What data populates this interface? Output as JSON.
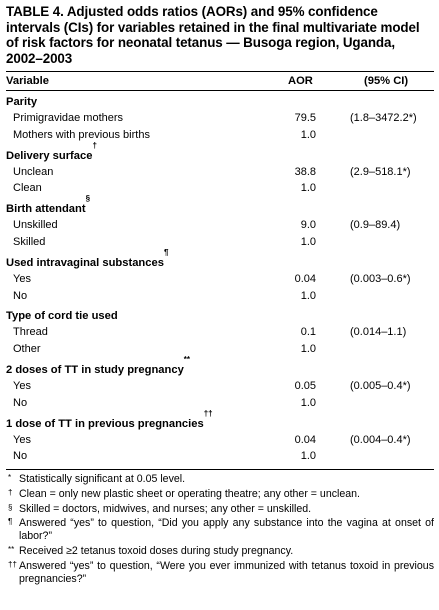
{
  "title": "TABLE 4. Adjusted odds ratios (AORs) and 95% confidence intervals (CIs) for variables retained in the final multivariate model of risk factors for neonatal tetanus — Busoga region, Uganda, 2002–2003",
  "header": {
    "variable": "Variable",
    "aor": "AOR",
    "ci": "(95% CI)"
  },
  "groups": [
    {
      "label": "Parity",
      "mark": "",
      "rows": [
        {
          "variable": "Primigravidae mothers",
          "aor": "79.5",
          "ci": "(1.8–3472.2*)"
        },
        {
          "variable": "Mothers with previous births",
          "aor": "1.0",
          "ci": ""
        }
      ]
    },
    {
      "label": "Delivery surface",
      "mark": "†",
      "rows": [
        {
          "variable": "Unclean",
          "aor": "38.8",
          "ci": "(2.9–518.1*)"
        },
        {
          "variable": "Clean",
          "aor": "1.0",
          "ci": ""
        }
      ]
    },
    {
      "label": "Birth attendant",
      "mark": "§",
      "rows": [
        {
          "variable": "Unskilled",
          "aor": "9.0",
          "ci": "(0.9–89.4)"
        },
        {
          "variable": "Skilled",
          "aor": "1.0",
          "ci": ""
        }
      ]
    },
    {
      "label": "Used intravaginal substances",
      "mark": "¶",
      "rows": [
        {
          "variable": "Yes",
          "aor": "0.04",
          "ci": "(0.003–0.6*)"
        },
        {
          "variable": "No",
          "aor": "1.0",
          "ci": ""
        }
      ]
    },
    {
      "label": "Type of cord tie used",
      "mark": "",
      "rows": [
        {
          "variable": "Thread",
          "aor": "0.1",
          "ci": "(0.014–1.1)"
        },
        {
          "variable": "Other",
          "aor": "1.0",
          "ci": ""
        }
      ]
    },
    {
      "label": "2 doses of TT in study pregnancy",
      "mark": "**",
      "rows": [
        {
          "variable": "Yes",
          "aor": "0.05",
          "ci": "(0.005–0.4*)"
        },
        {
          "variable": "No",
          "aor": "1.0",
          "ci": ""
        }
      ]
    },
    {
      "label": "1 dose of TT in previous pregnancies",
      "mark": "††",
      "rows": [
        {
          "variable": "Yes",
          "aor": "0.04",
          "ci": "(0.004–0.4*)"
        },
        {
          "variable": "No",
          "aor": "1.0",
          "ci": ""
        }
      ]
    }
  ],
  "footnotes": [
    {
      "mark": "*",
      "text": "Statistically significant at 0.05 level."
    },
    {
      "mark": "†",
      "text": "Clean = only new plastic sheet or operating theatre; any other = unclean."
    },
    {
      "mark": "§",
      "text": "Skilled = doctors, midwives, and nurses; any other = unskilled."
    },
    {
      "mark": "¶",
      "text": "Answered “yes” to question, “Did you apply any substance into the vagina at onset of labor?”"
    },
    {
      "mark": "**",
      "text": "Received ≥2 tetanus toxoid doses during study pregnancy."
    },
    {
      "mark": "††",
      "text": "Answered “yes” to question, “Were you ever immunized with tetanus toxoid in previous pregnancies?”"
    }
  ]
}
